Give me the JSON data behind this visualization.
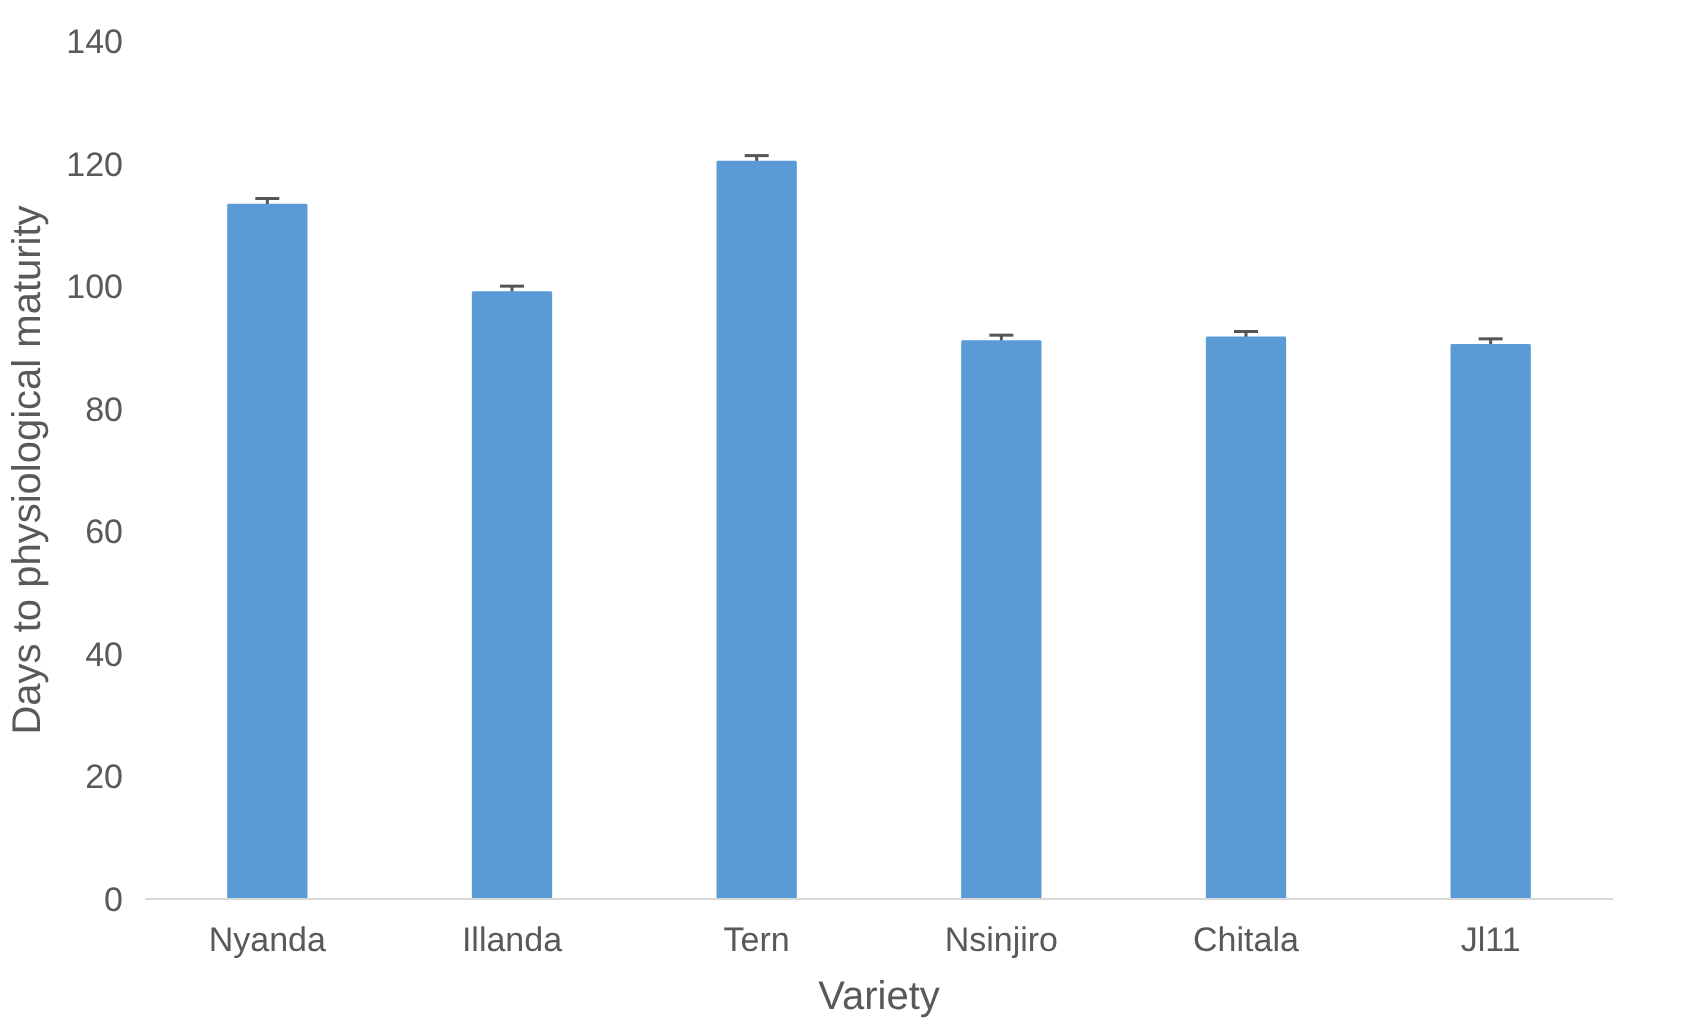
{
  "chart_data": {
    "type": "bar",
    "xlabel": "Variety",
    "ylabel": "Days to physiological maturity",
    "categories": [
      "Nyanda",
      "Illanda",
      "Tern",
      "Nsinjiro",
      "Chitala",
      "Jl11"
    ],
    "values": [
      113.3,
      99.0,
      120.3,
      91.0,
      91.6,
      90.4
    ],
    "errors": [
      1,
      1,
      1,
      1,
      1,
      1
    ],
    "color": "#5b9bd5",
    "ylim": [
      0,
      140
    ],
    "yticks": [
      0,
      20,
      40,
      60,
      80,
      100,
      120,
      140
    ],
    "grid": false
  }
}
